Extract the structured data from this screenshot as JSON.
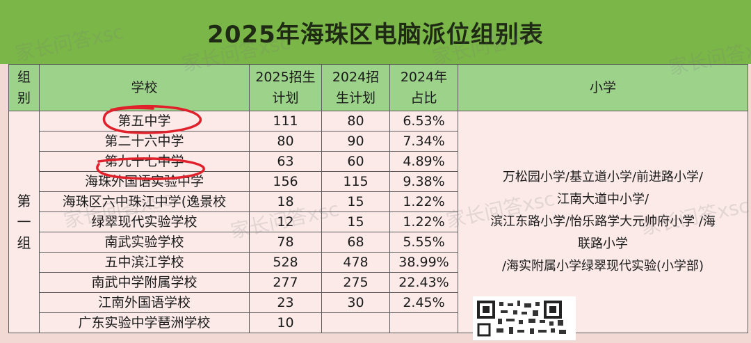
{
  "title": "2025年海珠区电脑派位组别表",
  "header": {
    "group": "组\n别",
    "school": "学校",
    "plan2025": "2025招生\n计划",
    "plan2024": "2024招\n生计划",
    "ratio2024": "2024年\n占比",
    "primary": "小学"
  },
  "group_label": "第\n一\n组",
  "rows": [
    {
      "school": "第五中学",
      "plan2025": "111",
      "plan2024": "80",
      "ratio": "6.53%"
    },
    {
      "school": "第二十六中学",
      "plan2025": "80",
      "plan2024": "90",
      "ratio": "7.34%"
    },
    {
      "school": "第九十七中学",
      "plan2025": "63",
      "plan2024": "60",
      "ratio": "4.89%"
    },
    {
      "school": "海珠外国语实验中学",
      "plan2025": "156",
      "plan2024": "115",
      "ratio": "9.38%"
    },
    {
      "school": "海珠区六中珠江中学(逸景校",
      "plan2025": "18",
      "plan2024": "15",
      "ratio": "1.22%"
    },
    {
      "school": "绿翠现代实验学校",
      "plan2025": "12",
      "plan2024": "15",
      "ratio": "1.22%"
    },
    {
      "school": "南武实验学校",
      "plan2025": "78",
      "plan2024": "68",
      "ratio": "5.55%"
    },
    {
      "school": "五中滨江学校",
      "plan2025": "528",
      "plan2024": "478",
      "ratio": "38.99%"
    },
    {
      "school": "南武中学附属学校",
      "plan2025": "277",
      "plan2024": "275",
      "ratio": "22.43%"
    },
    {
      "school": "江南外国语学校",
      "plan2025": "23",
      "plan2024": "30",
      "ratio": "2.45%"
    },
    {
      "school": "广东实验中学琶洲学校",
      "plan2025": "10",
      "plan2024": "",
      "ratio": ""
    }
  ],
  "primary_schools": "万松园小学/基立道小学/前进路小学/\n江南大道中小学/\n滨江东路小学/怡乐路学大元帅府小学 /海\n联路小学\n/海实附属小学绿翠现代实验(小学部)",
  "watermark": "家长问答xsc",
  "colors": {
    "header": "#9dd28b",
    "title": "#7ab648",
    "body": "#fbeae8",
    "annotation": "#e0202a"
  }
}
